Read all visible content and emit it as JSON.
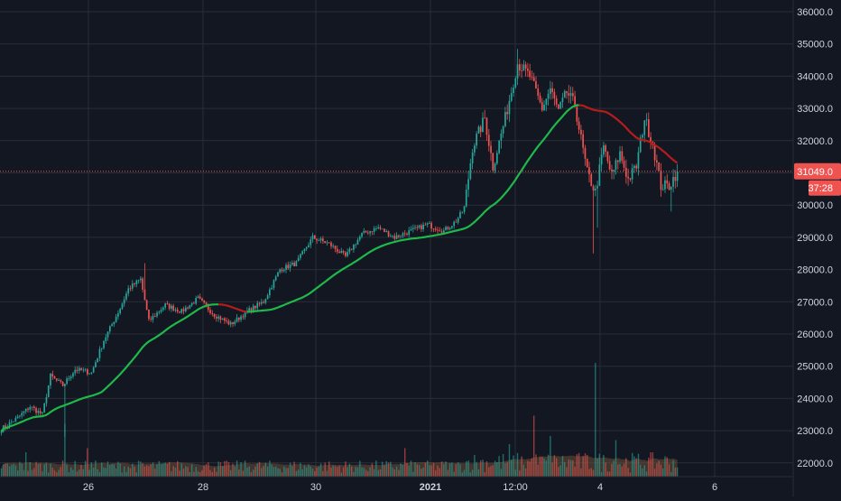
{
  "colors": {
    "background": "#131722",
    "grid": "#2a2e39",
    "up": "#26a69a",
    "down": "#ef5350",
    "ma": "#1fb84a",
    "ma_bear": "#b71c1c",
    "axis_text": "#d1d4dc",
    "volume_area": "#7a5a3f"
  },
  "price_label": {
    "value": "31049.0",
    "countdown": "37:28"
  },
  "chart_data": {
    "type": "candlestick",
    "title": "",
    "ylim": [
      21700,
      36400
    ],
    "y_ticks": [
      "36000.0",
      "35000.0",
      "34000.0",
      "33000.0",
      "32000.0",
      "31000.0",
      "30000.0",
      "29000.0",
      "28000.0",
      "27000.0",
      "26000.0",
      "25000.0",
      "24000.0",
      "23000.0",
      "22000.0"
    ],
    "x_ticks": [
      "26",
      "28",
      "30",
      "2021",
      "12:00",
      "4",
      "6"
    ],
    "grid": true,
    "last_price": 31049.0,
    "anchors": [
      [
        0,
        23050
      ],
      [
        8,
        23400
      ],
      [
        14,
        23750
      ],
      [
        20,
        23500
      ],
      [
        24,
        24700
      ],
      [
        30,
        24400
      ],
      [
        36,
        24900
      ],
      [
        44,
        24800
      ],
      [
        50,
        25800
      ],
      [
        58,
        26800
      ],
      [
        62,
        27400
      ],
      [
        68,
        27700
      ],
      [
        72,
        26400
      ],
      [
        80,
        26900
      ],
      [
        88,
        26700
      ],
      [
        96,
        27100
      ],
      [
        104,
        26600
      ],
      [
        112,
        26300
      ],
      [
        120,
        26700
      ],
      [
        128,
        27000
      ],
      [
        136,
        28000
      ],
      [
        144,
        28200
      ],
      [
        152,
        29000
      ],
      [
        160,
        28800
      ],
      [
        168,
        28400
      ],
      [
        176,
        29100
      ],
      [
        184,
        29300
      ],
      [
        192,
        29000
      ],
      [
        200,
        29200
      ],
      [
        208,
        29400
      ],
      [
        216,
        29200
      ],
      [
        222,
        29500
      ],
      [
        226,
        29900
      ],
      [
        230,
        31800
      ],
      [
        236,
        32700
      ],
      [
        240,
        31200
      ],
      [
        246,
        32700
      ],
      [
        252,
        34400
      ],
      [
        258,
        34000
      ],
      [
        264,
        33000
      ],
      [
        268,
        33600
      ],
      [
        272,
        32900
      ],
      [
        276,
        33500
      ],
      [
        280,
        33100
      ],
      [
        286,
        31000
      ],
      [
        290,
        30400
      ],
      [
        294,
        31800
      ],
      [
        298,
        30900
      ],
      [
        302,
        31600
      ],
      [
        306,
        30800
      ],
      [
        310,
        31200
      ],
      [
        314,
        32700
      ],
      [
        318,
        31900
      ],
      [
        322,
        30600
      ],
      [
        326,
        30600
      ],
      [
        330,
        31049
      ]
    ],
    "spikes": [
      {
        "i": 70,
        "high": 28200
      },
      {
        "i": 189,
        "high": 27500
      },
      {
        "i": 252,
        "high": 34850
      },
      {
        "i": 289,
        "low": 28500
      },
      {
        "i": 291,
        "low": 29300
      },
      {
        "i": 327,
        "low": 29800
      },
      {
        "i": 31,
        "low": 22800
      }
    ],
    "ma_period": 50,
    "volume_spikes": [
      {
        "i": 31,
        "v": 13
      },
      {
        "i": 42,
        "v": 7
      },
      {
        "i": 197,
        "v": 7
      },
      {
        "i": 260,
        "v": 15
      },
      {
        "i": 268,
        "v": 10
      },
      {
        "i": 290,
        "v": 28
      },
      {
        "i": 300,
        "v": 9
      },
      {
        "i": 248,
        "v": 8
      },
      {
        "i": 12,
        "v": 6
      }
    ],
    "n_bars": 331
  }
}
